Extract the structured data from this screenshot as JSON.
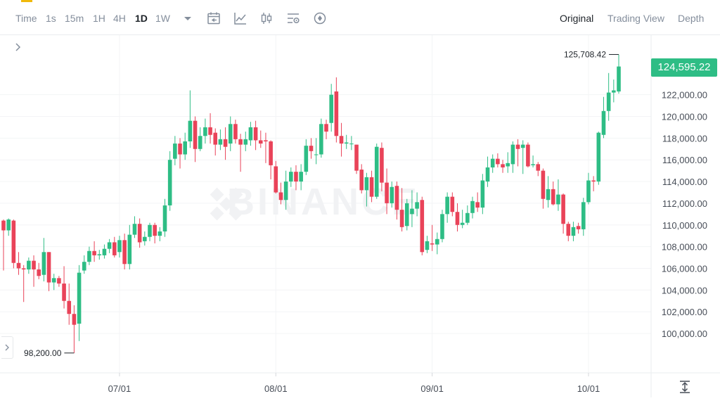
{
  "toolbar": {
    "timeframes": [
      {
        "label": "Time",
        "active": false
      },
      {
        "label": "1s",
        "active": false
      },
      {
        "label": "15m",
        "active": false
      },
      {
        "label": "1H",
        "active": false
      },
      {
        "label": "4H",
        "active": false
      },
      {
        "label": "1D",
        "active": true
      },
      {
        "label": "1W",
        "active": false
      }
    ],
    "icons": [
      "dropdown-caret-icon",
      "calendar-icon",
      "line-chart-icon",
      "candlestick-icon",
      "indicator-settings-icon",
      "add-indicator-icon"
    ],
    "views": [
      {
        "label": "Original",
        "active": true
      },
      {
        "label": "Trading View",
        "active": false
      },
      {
        "label": "Depth",
        "active": false
      }
    ]
  },
  "watermark": "BINANCE",
  "current_price": "124,595.22",
  "high_label": "125,708.42",
  "low_label": "98,200.00",
  "colors": {
    "up": "#2ebd85",
    "down": "#e94359",
    "badge": "#2ebd85",
    "grid": "#f3f4f6",
    "axis_text": "#474d57"
  },
  "chart_data": {
    "type": "candlestick",
    "x_labels": [
      "07/01",
      "08/01",
      "09/01",
      "10/01"
    ],
    "y_ticks": [
      "100,000.00",
      "102,000.00",
      "104,000.00",
      "106,000.00",
      "108,000.00",
      "110,000.00",
      "112,000.00",
      "114,000.00",
      "116,000.00",
      "118,000.00",
      "120,000.00",
      "122,000.00"
    ],
    "ylim": [
      97500,
      127500
    ],
    "candles": [
      [
        110400,
        109500,
        110500,
        105800
      ],
      [
        109500,
        110500,
        110600,
        109000
      ],
      [
        110400,
        106500,
        110500,
        106000
      ],
      [
        106500,
        106000,
        107500,
        105400
      ],
      [
        106000,
        105900,
        106300,
        102900
      ],
      [
        105900,
        106700,
        107000,
        105500
      ],
      [
        106700,
        105900,
        107200,
        104300
      ],
      [
        105900,
        105300,
        106500,
        105000
      ],
      [
        105400,
        107500,
        108800,
        104800
      ],
      [
        107500,
        104700,
        107500,
        103900
      ],
      [
        104700,
        105100,
        105500,
        104000
      ],
      [
        105100,
        104600,
        105300,
        104300
      ],
      [
        104600,
        103000,
        106200,
        102300
      ],
      [
        103000,
        101800,
        104600,
        100800
      ],
      [
        101800,
        100800,
        102600,
        98200
      ],
      [
        100900,
        105600,
        106300,
        99300
      ],
      [
        105800,
        106600,
        107200,
        105500
      ],
      [
        106600,
        107600,
        108000,
        106300
      ],
      [
        107600,
        107200,
        108500,
        106600
      ],
      [
        107200,
        107300,
        107700,
        106800
      ],
      [
        107200,
        107800,
        108200,
        106900
      ],
      [
        107800,
        108400,
        108700,
        107400
      ],
      [
        108400,
        107200,
        108900,
        107000
      ],
      [
        107500,
        108600,
        109000,
        107000
      ],
      [
        108600,
        106400,
        109200,
        105900
      ],
      [
        106400,
        109100,
        110000,
        105900
      ],
      [
        109100,
        110100,
        110800,
        108800
      ],
      [
        110100,
        108400,
        110600,
        107900
      ],
      [
        108500,
        108900,
        109400,
        108100
      ],
      [
        108900,
        110000,
        110200,
        108500
      ],
      [
        110000,
        109000,
        110200,
        108300
      ],
      [
        109000,
        109400,
        109800,
        108500
      ],
      [
        109400,
        111800,
        112400,
        108900
      ],
      [
        111800,
        116000,
        116800,
        111300
      ],
      [
        116100,
        117500,
        118200,
        115500
      ],
      [
        117500,
        116500,
        118000,
        115200
      ],
      [
        116500,
        117700,
        118500,
        116000
      ],
      [
        117700,
        119600,
        122400,
        117100
      ],
      [
        119600,
        117000,
        120000,
        115800
      ],
      [
        117000,
        118200,
        119000,
        116800
      ],
      [
        118200,
        119000,
        119800,
        117500
      ],
      [
        119000,
        118300,
        120300,
        117500
      ],
      [
        118500,
        117400,
        118900,
        116400
      ],
      [
        117400,
        117900,
        118800,
        116900
      ],
      [
        117900,
        117200,
        119000,
        116000
      ],
      [
        117500,
        119300,
        120000,
        116800
      ],
      [
        119300,
        117900,
        119700,
        117500
      ],
      [
        117900,
        117400,
        118400,
        114900
      ],
      [
        117400,
        117900,
        118600,
        116800
      ],
      [
        117800,
        119000,
        119500,
        117300
      ],
      [
        119000,
        117800,
        119600,
        116900
      ],
      [
        117800,
        117500,
        118700,
        117100
      ],
      [
        117800,
        117700,
        118500,
        115700
      ],
      [
        117700,
        115500,
        117800,
        114200
      ],
      [
        115400,
        113000,
        115900,
        112900
      ],
      [
        113000,
        112300,
        113900,
        111900
      ],
      [
        112300,
        114000,
        115000,
        111400
      ],
      [
        114000,
        114900,
        115300,
        113500
      ],
      [
        114900,
        114000,
        115500,
        113200
      ],
      [
        114000,
        114900,
        115600,
        113200
      ],
      [
        114900,
        117300,
        117900,
        114600
      ],
      [
        117300,
        116800,
        118000,
        116100
      ],
      [
        116500,
        116500,
        118000,
        115600
      ],
      [
        116500,
        119300,
        119800,
        116200
      ],
      [
        119300,
        118600,
        119700,
        117900
      ],
      [
        119400,
        122000,
        123000,
        118600
      ],
      [
        122300,
        118200,
        123600,
        117600
      ],
      [
        118200,
        117500,
        119400,
        116300
      ],
      [
        117500,
        117600,
        118300,
        117000
      ],
      [
        117500,
        117500,
        118200,
        116900
      ],
      [
        117400,
        115000,
        117400,
        114700
      ],
      [
        115100,
        113200,
        115600,
        112900
      ],
      [
        113200,
        114400,
        114800,
        111700
      ],
      [
        114400,
        112600,
        115000,
        112100
      ],
      [
        112600,
        117200,
        117500,
        112400
      ],
      [
        117100,
        113900,
        117600,
        113100
      ],
      [
        113900,
        112000,
        115200,
        111000
      ],
      [
        112000,
        113500,
        114000,
        111600
      ],
      [
        113600,
        111400,
        114000,
        110500
      ],
      [
        111400,
        109800,
        113400,
        109400
      ],
      [
        109900,
        112000,
        112400,
        109500
      ],
      [
        111000,
        111500,
        113200,
        109800
      ],
      [
        111500,
        112100,
        113000,
        110800
      ],
      [
        112300,
        107500,
        112600,
        107200
      ],
      [
        107700,
        108500,
        109000,
        107400
      ],
      [
        108300,
        108200,
        110000,
        107600
      ],
      [
        108200,
        108700,
        109300,
        107300
      ],
      [
        108700,
        111000,
        111400,
        108400
      ],
      [
        111000,
        112600,
        113000,
        110200
      ],
      [
        112600,
        111200,
        113000,
        110800
      ],
      [
        111200,
        110000,
        112000,
        109400
      ],
      [
        110000,
        110200,
        111400,
        109700
      ],
      [
        110200,
        111100,
        111800,
        110000
      ],
      [
        111100,
        112200,
        112600,
        110600
      ],
      [
        112100,
        111600,
        113000,
        111200
      ],
      [
        111600,
        114100,
        114700,
        111000
      ],
      [
        114000,
        115300,
        116300,
        113500
      ],
      [
        115300,
        116100,
        116500,
        114800
      ],
      [
        116100,
        115600,
        116600,
        115300
      ],
      [
        115600,
        115300,
        116000,
        114800
      ],
      [
        115400,
        115700,
        116700,
        114800
      ],
      [
        115600,
        117400,
        117700,
        114800
      ],
      [
        117400,
        117000,
        117900,
        115400
      ],
      [
        117100,
        117400,
        117800,
        114700
      ],
      [
        117400,
        115400,
        117600,
        115300
      ],
      [
        115500,
        115600,
        116400,
        115300
      ],
      [
        115600,
        115000,
        115800,
        114500
      ],
      [
        115000,
        112400,
        115200,
        111500
      ],
      [
        112300,
        113300,
        114500,
        111600
      ],
      [
        113300,
        111900,
        114000,
        111800
      ],
      [
        111900,
        112800,
        114200,
        111300
      ],
      [
        112800,
        110100,
        112900,
        109200
      ],
      [
        110100,
        109000,
        110300,
        108500
      ],
      [
        109000,
        109800,
        110300,
        108500
      ],
      [
        109900,
        109600,
        110200,
        109200
      ],
      [
        109600,
        112100,
        112500,
        109000
      ],
      [
        112100,
        114100,
        114800,
        111900
      ],
      [
        114100,
        114000,
        114500,
        113100
      ],
      [
        114000,
        118500,
        118600,
        113700
      ],
      [
        118300,
        120500,
        121800,
        118000
      ],
      [
        120500,
        122200,
        124000,
        119600
      ],
      [
        122200,
        122400,
        123400,
        121300
      ],
      [
        122300,
        124600,
        125708,
        122100
      ]
    ]
  }
}
